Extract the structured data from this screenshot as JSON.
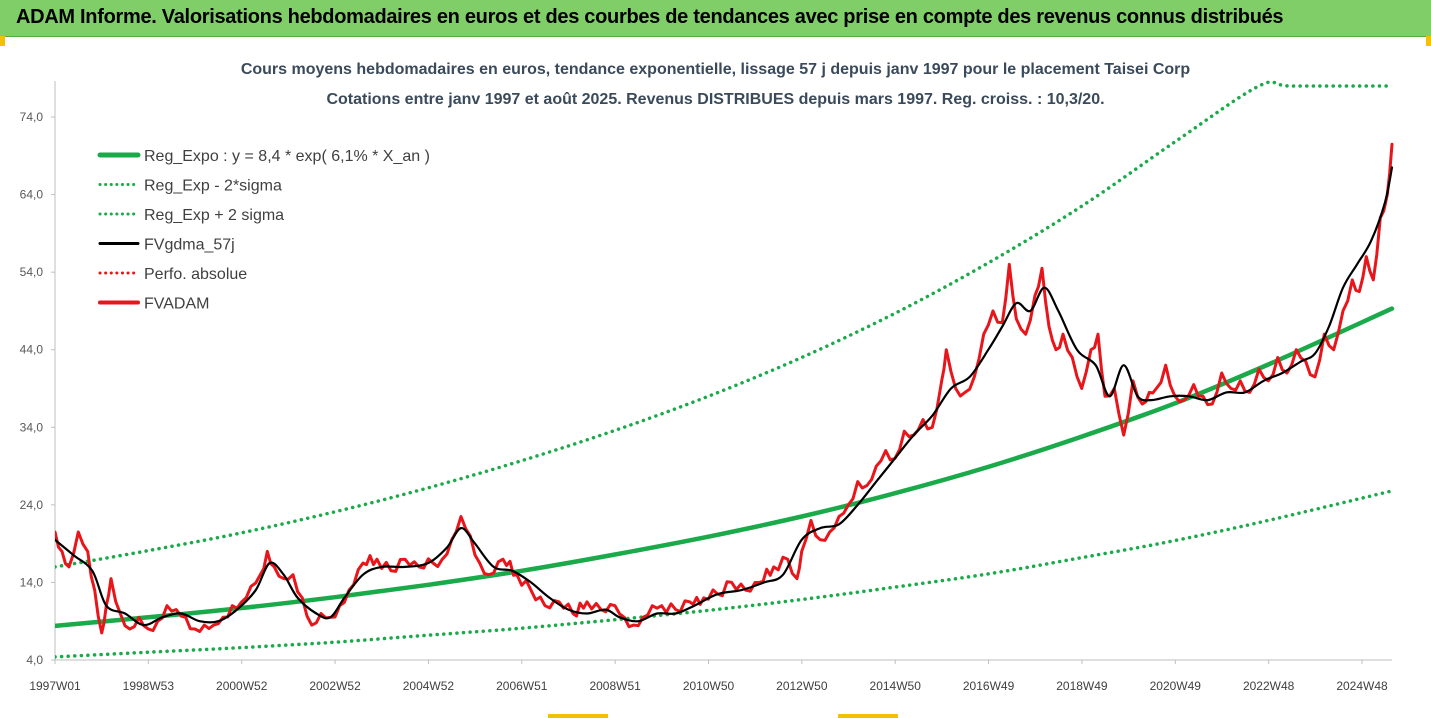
{
  "header": {
    "title": "ADAM Informe. Valorisations hebdomadaires en euros et des courbes de tendances avec prise en compte des revenus connus distribués"
  },
  "chart_data": {
    "type": "line",
    "title": "Cours moyens hebdomadaires en euros, tendance exponentielle, lissage 57 j depuis janv 1997 pour le placement Taisei Corp",
    "subtitle": "Cotations entre janv 1997 et août 2025. Revenus DISTRIBUES depuis mars 1997. Reg. croiss. : 10,3/20.",
    "xlabel": "",
    "ylabel": "",
    "ylim": [
      4,
      78
    ],
    "yticks": [
      "4,0",
      "14,0",
      "24,0",
      "34,0",
      "44,0",
      "54,0",
      "64,0",
      "74,0"
    ],
    "xlim": [
      1997.0,
      2025.65
    ],
    "xticks": [
      "1997W01",
      "1998W53",
      "2000W52",
      "2002W52",
      "2004W52",
      "2006W51",
      "2008W51",
      "2010W50",
      "2012W50",
      "2014W50",
      "2016W49",
      "2018W49",
      "2020W49",
      "2022W48",
      "2024W48"
    ],
    "grid": false,
    "legend_position": "top-left",
    "series": [
      {
        "name": "Reg_Expo : y = 8,4 * exp( 6,1% *  X_an )",
        "color": "#1aaa4a",
        "style": "solid",
        "x": [
          1997.0,
          1999,
          2001,
          2003,
          2005,
          2007,
          2009,
          2011,
          2013,
          2015,
          2017,
          2019,
          2021,
          2023,
          2025.65
        ],
        "y": [
          8.4,
          9.5,
          10.7,
          12.1,
          13.7,
          15.5,
          17.6,
          19.9,
          22.5,
          25.5,
          28.9,
          32.8,
          37.1,
          42.1,
          49.3
        ]
      },
      {
        "name": "Reg_Exp - 2*sigma",
        "color": "#1aaa4a",
        "style": "dotted",
        "x": [
          1997.0,
          1999,
          2001,
          2003,
          2005,
          2007,
          2009,
          2011,
          2013,
          2015,
          2017,
          2019,
          2021,
          2023,
          2025.65
        ],
        "y": [
          4.4,
          5.0,
          5.6,
          6.3,
          7.2,
          8.1,
          9.2,
          10.4,
          11.8,
          13.4,
          15.1,
          17.2,
          19.4,
          22.0,
          25.8
        ]
      },
      {
        "name": "Reg_Exp + 2 sigma",
        "color": "#1aaa4a",
        "style": "dotted",
        "x": [
          1997.0,
          1999,
          2001,
          2003,
          2005,
          2007,
          2009,
          2011,
          2013,
          2015,
          2017,
          2019,
          2021,
          2022.8,
          2023.5,
          2025.65
        ],
        "y": [
          16.0,
          18.1,
          20.4,
          23.1,
          26.2,
          29.7,
          33.6,
          38.0,
          43.0,
          48.7,
          55.2,
          62.5,
          70.8,
          78,
          78,
          78
        ]
      },
      {
        "name": "FVgdma_57j",
        "color": "#000000",
        "style": "solid",
        "x": [
          1997.0,
          1997.4,
          1997.8,
          1998.1,
          1998.5,
          1998.9,
          1999.3,
          1999.7,
          2000.1,
          2000.5,
          2000.9,
          2001.3,
          2001.6,
          2001.9,
          2002.2,
          2002.6,
          2002.9,
          2003.2,
          2003.6,
          2004.0,
          2004.5,
          2005.0,
          2005.4,
          2005.7,
          2006.0,
          2006.4,
          2006.8,
          2007.2,
          2007.6,
          2008.0,
          2008.4,
          2008.8,
          2009.1,
          2009.5,
          2009.9,
          2010.3,
          2010.7,
          2011.2,
          2011.7,
          2012.2,
          2012.6,
          2013.0,
          2013.4,
          2013.8,
          2014.2,
          2014.6,
          2015.0,
          2015.4,
          2015.8,
          2016.2,
          2016.6,
          2017.0,
          2017.3,
          2017.6,
          2017.9,
          2018.2,
          2018.5,
          2018.9,
          2019.3,
          2019.6,
          2019.9,
          2020.2,
          2020.5,
          2020.9,
          2021.3,
          2021.7,
          2022.1,
          2022.5,
          2022.9,
          2023.3,
          2023.7,
          2024.0,
          2024.3,
          2024.6,
          2024.9,
          2025.2,
          2025.5,
          2025.65
        ],
        "y": [
          19.5,
          17.5,
          15.5,
          11.0,
          10.0,
          8.5,
          9.5,
          10.0,
          9.0,
          9.0,
          10.5,
          13.0,
          16.5,
          15.0,
          12.0,
          10.0,
          9.5,
          12.0,
          15.0,
          16.0,
          16.0,
          16.5,
          18.5,
          21.0,
          19.0,
          16.0,
          15.5,
          14.0,
          12.0,
          10.5,
          10.0,
          10.5,
          9.5,
          9.0,
          10.0,
          10.0,
          11.0,
          12.5,
          13.0,
          14.0,
          15.0,
          19.5,
          21.0,
          21.5,
          24.0,
          27.0,
          30.0,
          33.0,
          35.5,
          39.0,
          40.5,
          44.0,
          47.0,
          50.0,
          49.0,
          52.0,
          49.0,
          44.0,
          42.0,
          38.0,
          42.0,
          38.0,
          37.5,
          38.0,
          38.0,
          37.5,
          38.5,
          38.5,
          40.0,
          41.0,
          42.5,
          43.5,
          47.0,
          52.0,
          55.0,
          58.0,
          63.0,
          67.5
        ]
      },
      {
        "name": "Perfo. absolue",
        "color": "#e8161b",
        "style": "dotted",
        "x": [],
        "y": []
      },
      {
        "name": "FVADAM",
        "color": "#e8161b",
        "style": "solid",
        "x": [
          1997.0,
          1997.15,
          1997.3,
          1997.5,
          1997.7,
          1997.85,
          1998.0,
          1998.1,
          1998.2,
          1998.4,
          1998.6,
          1998.8,
          1999.0,
          1999.2,
          1999.4,
          1999.6,
          1999.8,
          2000.0,
          2000.2,
          2000.4,
          2000.6,
          2000.8,
          2001.0,
          2001.2,
          2001.4,
          2001.55,
          2001.7,
          2001.9,
          2002.1,
          2002.3,
          2002.5,
          2002.7,
          2002.9,
          2003.1,
          2003.3,
          2003.6,
          2003.9,
          2004.2,
          2004.5,
          2004.8,
          2005.1,
          2005.3,
          2005.5,
          2005.7,
          2005.9,
          2006.1,
          2006.3,
          2006.6,
          2006.9,
          2007.2,
          2007.5,
          2007.8,
          2008.1,
          2008.4,
          2008.7,
          2009.0,
          2009.2,
          2009.4,
          2009.6,
          2009.8,
          2010.0,
          2010.3,
          2010.6,
          2010.9,
          2011.2,
          2011.5,
          2011.8,
          2012.1,
          2012.4,
          2012.7,
          2012.9,
          2013.0,
          2013.2,
          2013.4,
          2013.6,
          2013.8,
          2014.0,
          2014.2,
          2014.4,
          2014.6,
          2014.8,
          2015.0,
          2015.2,
          2015.4,
          2015.6,
          2015.8,
          2016.0,
          2016.1,
          2016.3,
          2016.5,
          2016.7,
          2016.9,
          2017.1,
          2017.3,
          2017.45,
          2017.6,
          2017.8,
          2018.0,
          2018.15,
          2018.3,
          2018.45,
          2018.6,
          2018.8,
          2019.0,
          2019.2,
          2019.35,
          2019.5,
          2019.7,
          2019.9,
          2020.1,
          2020.3,
          2020.45,
          2020.6,
          2020.8,
          2021.0,
          2021.2,
          2021.4,
          2021.6,
          2021.8,
          2022.0,
          2022.2,
          2022.4,
          2022.6,
          2022.8,
          2023.0,
          2023.2,
          2023.4,
          2023.6,
          2023.8,
          2024.0,
          2024.2,
          2024.4,
          2024.6,
          2024.8,
          2024.95,
          2025.1,
          2025.25,
          2025.4,
          2025.55,
          2025.65
        ],
        "y": [
          20.5,
          18.0,
          16.0,
          20.5,
          18.0,
          13.0,
          7.5,
          11.0,
          14.5,
          10.0,
          8.0,
          9.5,
          8.0,
          9.0,
          11.0,
          10.5,
          9.5,
          8.0,
          8.5,
          8.5,
          9.5,
          11.0,
          11.5,
          13.5,
          15.0,
          18.0,
          16.0,
          14.5,
          15.0,
          12.0,
          8.5,
          10.0,
          9.5,
          11.0,
          13.0,
          16.5,
          17.0,
          15.5,
          17.0,
          16.0,
          16.5,
          17.0,
          19.5,
          22.5,
          20.0,
          16.5,
          15.0,
          17.0,
          15.0,
          13.0,
          11.0,
          11.5,
          10.0,
          11.5,
          10.5,
          11.0,
          9.5,
          8.5,
          9.5,
          11.0,
          11.0,
          10.5,
          11.5,
          12.0,
          12.5,
          14.0,
          13.0,
          14.0,
          16.0,
          17.0,
          14.5,
          18.0,
          22.0,
          19.5,
          20.5,
          22.5,
          24.0,
          27.0,
          26.5,
          29.0,
          31.0,
          30.0,
          33.5,
          33.0,
          35.0,
          34.0,
          40.0,
          44.0,
          39.0,
          38.5,
          40.5,
          46.0,
          49.0,
          47.5,
          55.0,
          48.0,
          46.0,
          51.0,
          54.5,
          47.0,
          44.0,
          46.0,
          43.0,
          39.0,
          44.0,
          46.0,
          38.0,
          39.0,
          33.0,
          40.0,
          37.0,
          38.5,
          39.0,
          42.0,
          38.0,
          37.5,
          39.5,
          38.0,
          37.0,
          41.0,
          39.0,
          40.0,
          38.5,
          41.5,
          40.0,
          43.0,
          41.0,
          44.0,
          42.5,
          40.5,
          46.0,
          44.0,
          49.0,
          53.0,
          51.5,
          56.0,
          53.0,
          61.0,
          64.0,
          70.5
        ]
      }
    ]
  }
}
